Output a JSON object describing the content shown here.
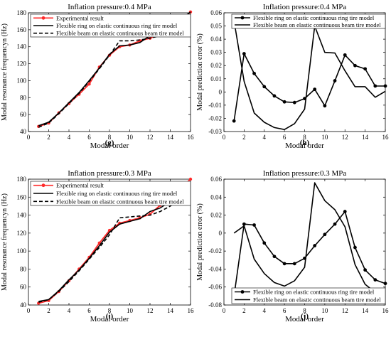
{
  "chart_data": [
    {
      "type": "line",
      "title": "Inflation pressure:0.4 MPa",
      "panel_label": "(g)",
      "xlabel": "Modal order",
      "ylabel": "Modal resonance frequencyn (Hz)",
      "xlim": [
        0,
        16
      ],
      "ylim": [
        40,
        180
      ],
      "xticks": [
        "0",
        "2",
        "4",
        "6",
        "8",
        "10",
        "12",
        "14",
        "16"
      ],
      "yticks": [
        "40",
        "60",
        "80",
        "100",
        "120",
        "140",
        "160",
        "180"
      ],
      "legend_position": "top-left",
      "x": [
        1,
        2,
        3,
        4,
        5,
        6,
        7,
        8,
        9,
        10,
        11,
        12,
        13,
        14,
        15,
        16
      ],
      "series": [
        {
          "name": "Experimental result",
          "style": "red-marker",
          "color": "#ff2a2a",
          "values": [
            46,
            50,
            62,
            73,
            84,
            96,
            116,
            130,
            140,
            142,
            147,
            150,
            155,
            162,
            170,
            181
          ]
        },
        {
          "name": "Flexible ring on elastic continuous ring tire model",
          "style": "solid",
          "color": "#000000",
          "values": [
            47,
            51,
            62,
            74,
            86,
            100,
            115,
            131,
            141,
            142,
            145,
            153,
            157,
            165,
            172,
            181
          ]
        },
        {
          "name": "Flexible beam on elastic continuous beam tire model",
          "style": "dashed",
          "color": "#000000",
          "values": [
            45,
            50,
            61,
            73,
            85,
            99,
            114,
            130,
            147,
            147,
            148,
            150,
            153,
            160,
            170,
            180
          ]
        }
      ]
    },
    {
      "type": "line",
      "title": "Inflation pressure:0.4 MPa",
      "panel_label": "(h)",
      "xlabel": "Modal order",
      "ylabel": "Modal prediction error (%)",
      "xlim": [
        0,
        16
      ],
      "ylim": [
        -0.03,
        0.06
      ],
      "xticks": [
        "0",
        "2",
        "4",
        "6",
        "8",
        "10",
        "12",
        "14",
        "16"
      ],
      "yticks": [
        "-0.03",
        "-0.02",
        "-0.01",
        "0",
        "0.01",
        "0.02",
        "0.03",
        "0.04",
        "0.05",
        "0.06"
      ],
      "legend_position": "top-right",
      "x": [
        1,
        2,
        3,
        4,
        5,
        6,
        7,
        8,
        9,
        10,
        11,
        12,
        13,
        14,
        15,
        16
      ],
      "series": [
        {
          "name": "Flexible ring on elastic continuous ring tire model",
          "style": "marker",
          "color": "#000000",
          "values": [
            -0.022,
            0.029,
            0.014,
            0.004,
            -0.003,
            -0.0075,
            -0.008,
            -0.005,
            0.002,
            -0.0105,
            0.0085,
            0.028,
            0.02,
            0.0175,
            0.0045,
            0.0045
          ]
        },
        {
          "name": "Flexible beam on elastic continuous beam tire model",
          "style": "solid",
          "color": "#000000",
          "values": [
            0.054,
            0.008,
            -0.016,
            -0.023,
            -0.027,
            -0.0285,
            -0.024,
            -0.013,
            0.05,
            0.03,
            0.0295,
            0.016,
            0.004,
            0.004,
            -0.004,
            0.0005
          ]
        }
      ]
    },
    {
      "type": "line",
      "title": "Inflation pressure:0.3 MPa",
      "panel_label": "(i)",
      "xlabel": "Modal order",
      "ylabel": "Modal resonance frequencyn (Hz)",
      "xlim": [
        0,
        16
      ],
      "ylim": [
        40,
        180
      ],
      "xticks": [
        "0",
        "2",
        "4",
        "6",
        "8",
        "10",
        "12",
        "14",
        "16"
      ],
      "yticks": [
        "40",
        "60",
        "80",
        "100",
        "120",
        "140",
        "160",
        "180"
      ],
      "legend_position": "top-left",
      "x": [
        1,
        2,
        3,
        4,
        5,
        6,
        7,
        8,
        9,
        10,
        11,
        12,
        13,
        14,
        15,
        16
      ],
      "series": [
        {
          "name": "Experimental result",
          "style": "red-marker",
          "color": "#ff2a2a",
          "values": [
            42,
            45,
            55,
            67,
            80,
            93,
            109,
            123,
            131,
            134,
            137,
            141,
            151,
            161,
            170,
            180
          ]
        },
        {
          "name": "Flexible ring on elastic continuous ring tire model",
          "style": "solid",
          "color": "#000000",
          "values": [
            44,
            46,
            56,
            68,
            79,
            92,
            106,
            121,
            130,
            133,
            136,
            144,
            148,
            155,
            162,
            170
          ]
        },
        {
          "name": "Flexible beam on elastic continuous beam tire model",
          "style": "dashed",
          "color": "#000000",
          "values": [
            43,
            46,
            55,
            66,
            78,
            91,
            104,
            118,
            137,
            138,
            139,
            140,
            144,
            150,
            158,
            169
          ]
        }
      ]
    },
    {
      "type": "line",
      "title": "Inflation pressure:0.3 MPa",
      "panel_label": "(j)",
      "xlabel": "Modal order",
      "ylabel": "Modal prediction error (%)",
      "xlim": [
        0,
        16
      ],
      "ylim": [
        -0.08,
        0.06
      ],
      "xticks": [
        "0",
        "2",
        "4",
        "6",
        "8",
        "10",
        "12",
        "14",
        "16"
      ],
      "yticks": [
        "-0.08",
        "-0.06",
        "-0.04",
        "-0.02",
        "0",
        "0.02",
        "0.04",
        "0.06"
      ],
      "legend_position": "bottom-right",
      "x": [
        1,
        2,
        3,
        4,
        5,
        6,
        7,
        8,
        9,
        10,
        11,
        12,
        13,
        14,
        15,
        16
      ],
      "series": [
        {
          "name": "Flexible ring on elastic continuous ring tire model",
          "style": "marker",
          "color": "#000000",
          "values": [
            -0.07,
            0.01,
            0.009,
            -0.011,
            -0.026,
            -0.034,
            -0.034,
            -0.028,
            -0.014,
            -0.0015,
            0.01,
            0.024,
            -0.016,
            -0.041,
            -0.052,
            -0.056
          ]
        },
        {
          "name": "Flexible beam on elastic continuous beam tire model",
          "style": "solid",
          "color": "#000000",
          "values": [
            0.0,
            0.008,
            -0.029,
            -0.045,
            -0.055,
            -0.059,
            -0.053,
            -0.038,
            0.056,
            0.036,
            0.026,
            0.007,
            -0.035,
            -0.057,
            -0.066,
            -0.061
          ]
        }
      ]
    }
  ]
}
